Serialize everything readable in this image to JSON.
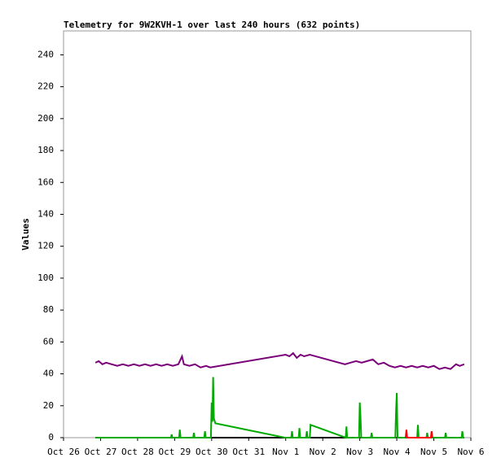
{
  "chart_data": {
    "type": "line",
    "title": "Telemetry for 9W2KVH-1 over last 240 hours (632 points)",
    "y_label": "Values",
    "xlim": [
      0,
      11
    ],
    "xticks": [
      {
        "value": 0,
        "label": "Oct 26"
      },
      {
        "value": 1,
        "label": "Oct 27"
      },
      {
        "value": 2,
        "label": "Oct 28"
      },
      {
        "value": 3,
        "label": "Oct 29"
      },
      {
        "value": 4,
        "label": "Oct 30"
      },
      {
        "value": 5,
        "label": "Oct 31"
      },
      {
        "value": 6,
        "label": "Nov 1"
      },
      {
        "value": 7,
        "label": "Nov 2"
      },
      {
        "value": 8,
        "label": "Nov 3"
      },
      {
        "value": 9,
        "label": "Nov 4"
      },
      {
        "value": 10,
        "label": "Nov 5"
      },
      {
        "value": 11,
        "label": "Nov 6"
      }
    ],
    "ylim": [
      0,
      255
    ],
    "yticks": [
      0,
      20,
      40,
      60,
      80,
      100,
      120,
      140,
      160,
      180,
      200,
      220,
      240
    ],
    "series": [
      {
        "color": "#000000",
        "x": [
          0.86,
          10.82
        ],
        "values": [
          0,
          0
        ]
      },
      {
        "color": "#7a007a",
        "x": [
          0.86,
          0.95,
          1.05,
          1.15,
          1.3,
          1.45,
          1.6,
          1.75,
          1.9,
          2.05,
          2.2,
          2.35,
          2.5,
          2.65,
          2.8,
          2.95,
          3.1,
          3.2,
          3.25,
          3.4,
          3.55,
          3.7,
          3.85,
          3.96,
          6.0,
          6.1,
          6.2,
          6.3,
          6.4,
          6.5,
          6.65,
          7.6,
          7.75,
          7.9,
          8.05,
          8.2,
          8.35,
          8.5,
          8.65,
          8.8,
          8.95,
          9.1,
          9.25,
          9.4,
          9.55,
          9.7,
          9.85,
          10.0,
          10.15,
          10.3,
          10.45,
          10.6,
          10.7,
          10.82
        ],
        "values": [
          47,
          48,
          46,
          47,
          46,
          45,
          46,
          45,
          46,
          45,
          46,
          45,
          46,
          45,
          46,
          45,
          46,
          51,
          46,
          45,
          46,
          44,
          45,
          44,
          52,
          51,
          53,
          50,
          52,
          51,
          52,
          46,
          47,
          48,
          47,
          48,
          49,
          46,
          47,
          45,
          44,
          45,
          44,
          45,
          44,
          45,
          44,
          45,
          43,
          44,
          43,
          46,
          45,
          46
        ]
      },
      {
        "color": "#00aa00",
        "x": [
          0.86,
          2.9,
          2.92,
          2.94,
          3.12,
          3.14,
          3.16,
          3.5,
          3.52,
          3.54,
          3.8,
          3.82,
          3.84,
          3.98,
          4.0,
          4.02,
          4.04,
          4.06,
          4.1,
          5.98,
          6.15,
          6.17,
          6.19,
          6.35,
          6.37,
          6.39,
          6.55,
          6.57,
          6.59,
          6.65,
          6.67,
          7.62,
          7.64,
          7.66,
          7.98,
          8.0,
          8.02,
          8.04,
          8.3,
          8.32,
          8.34,
          8.96,
          8.98,
          9.0,
          9.02,
          9.55,
          9.57,
          9.59,
          9.8,
          9.82,
          9.84,
          10.3,
          10.32,
          10.34,
          10.75,
          10.77,
          10.79,
          10.82
        ],
        "values": [
          0,
          0,
          2,
          0,
          0,
          5,
          0,
          0,
          3,
          0,
          0,
          4,
          0,
          0,
          22,
          10,
          38,
          12,
          9,
          0,
          0,
          4,
          0,
          0,
          6,
          0,
          0,
          4,
          0,
          0,
          8,
          0,
          7,
          0,
          0,
          22,
          13,
          0,
          0,
          3,
          0,
          0,
          17,
          28,
          0,
          0,
          8,
          0,
          0,
          3,
          0,
          0,
          3,
          0,
          0,
          4,
          0,
          0
        ]
      },
      {
        "color": "#ff0000",
        "x": [
          9.24,
          9.26,
          9.28,
          9.92,
          9.94,
          9.96
        ],
        "values": [
          0,
          5,
          0,
          0,
          4,
          0
        ]
      }
    ]
  }
}
